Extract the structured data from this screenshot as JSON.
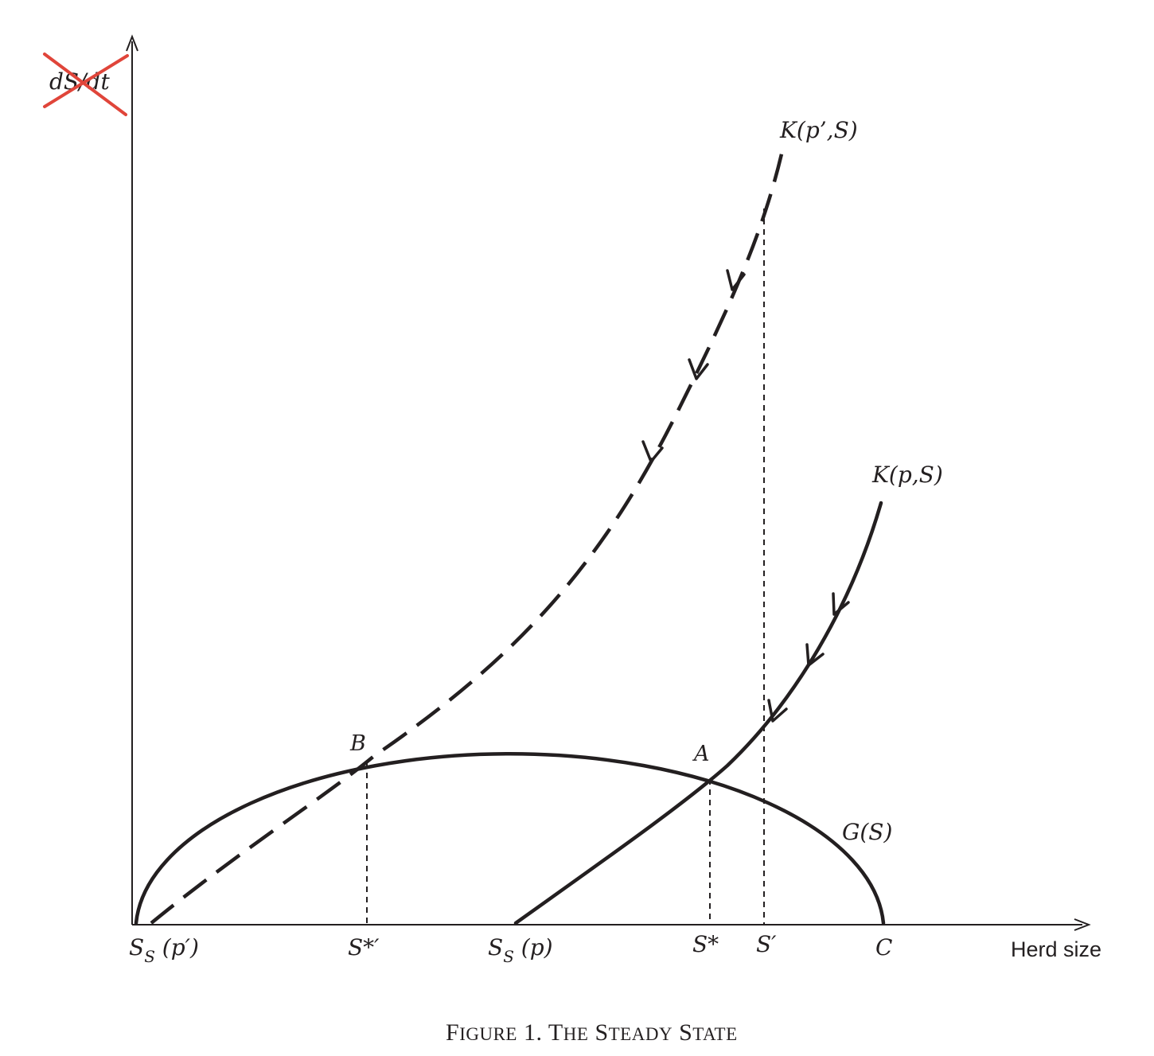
{
  "figure": {
    "caption_main": "F",
    "caption_small_1": "IGURE",
    "caption_num": " 1. T",
    "caption_small_2": "HE",
    "caption_sp1": " S",
    "caption_small_3": "TEADY",
    "caption_sp2": " S",
    "caption_small_4": "TATE"
  },
  "axes": {
    "y_label": "dS/dt",
    "y_label_crossed_out": true,
    "x_label": "Herd size"
  },
  "curves": {
    "growth_label": "G(S)",
    "k_p_label": "K(p,S)",
    "k_p_prime_label": "K(p’,S)"
  },
  "points": {
    "a_label": "A",
    "b_label": "B"
  },
  "x_ticks": {
    "ss_p_prime": {
      "main": "S",
      "sub": "S",
      "rest": " (p′)"
    },
    "s_star_prime": "S*′",
    "ss_p": {
      "main": "S",
      "sub": "S",
      "rest": " (p)"
    },
    "s_star": "S*",
    "s_prime": "S′",
    "c": "C"
  },
  "colors": {
    "ink": "#231f20",
    "cross_out": "#e0453a"
  }
}
